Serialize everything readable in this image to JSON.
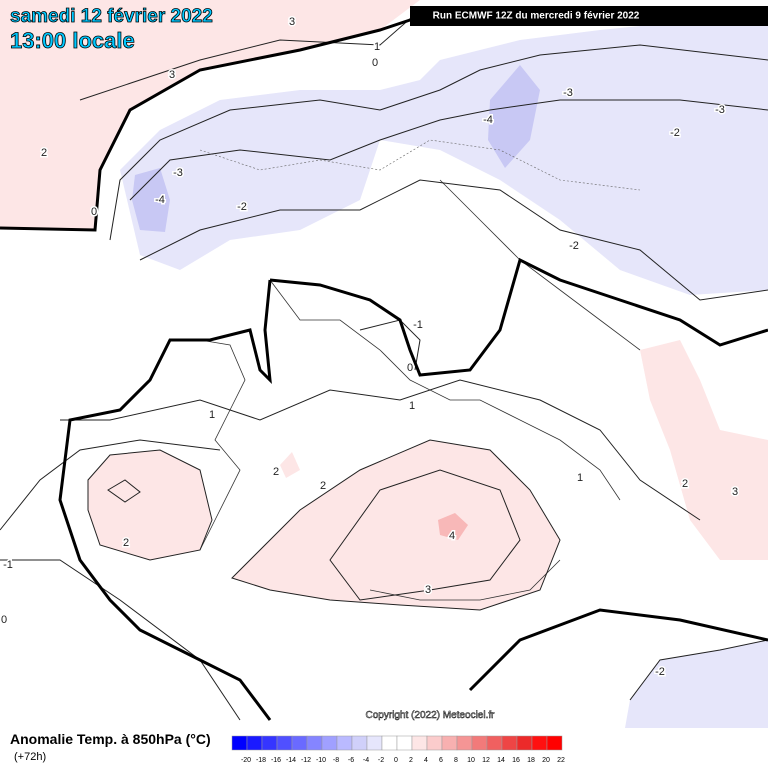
{
  "header": {
    "date": "samedi 12 février 2022",
    "time": "13:00 locale",
    "run": "Run ECMWF 12Z du mercredi 9 février 2022"
  },
  "map": {
    "contour_labels": [
      3,
      1,
      0,
      3,
      2,
      -3,
      -4,
      0,
      -2,
      -4,
      -3,
      -3,
      -2,
      -2,
      -1,
      0,
      1,
      1,
      2,
      2,
      2,
      4,
      3,
      1,
      2,
      3,
      -1,
      0,
      -2
    ]
  },
  "footer": {
    "title": "Anomalie Temp. à 850hPa (°C)",
    "lead": "(+72h)",
    "copyright": "Copyright (2022) Meteociel.fr"
  },
  "legend": {
    "ticks": [
      -20,
      -18,
      -16,
      -14,
      -12,
      -10,
      -8,
      -6,
      -4,
      -2,
      0,
      2,
      4,
      6,
      8,
      10,
      12,
      14,
      16,
      18,
      20,
      22
    ],
    "colors": [
      "#0000ff",
      "#1a1aff",
      "#3535ff",
      "#5050ff",
      "#6a6aff",
      "#8585ff",
      "#a0a0ff",
      "#babaff",
      "#d0d0fa",
      "#e6e6fc",
      "#ffffff",
      "#ffffff",
      "#fde6e6",
      "#fbcccc",
      "#f8b0b0",
      "#f59595",
      "#f27a7a",
      "#f06060",
      "#ee4545",
      "#ec2a2a",
      "#ff1010",
      "#ff0000"
    ]
  }
}
